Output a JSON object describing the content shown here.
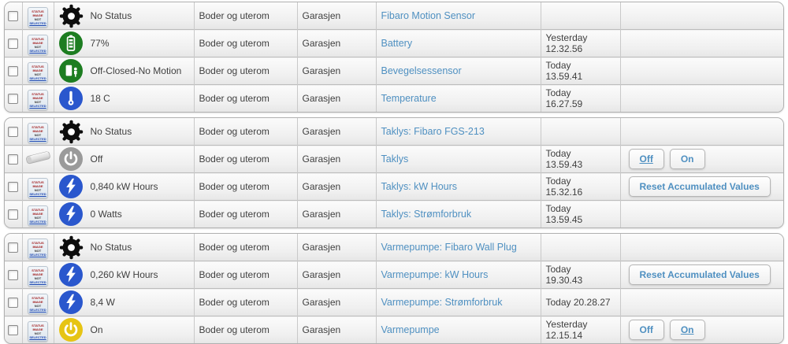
{
  "colors": {
    "link_blue": "#4f90c1",
    "icon_green": "#1d7d21",
    "icon_blue": "#2a57cd",
    "icon_gray": "#9a9a9a",
    "icon_yellow": "#e6c414",
    "icon_black": "#0d0d0d"
  },
  "placeholder_image": {
    "lines": [
      "STATUS",
      "IMAGE",
      "NOT",
      "SELECTED"
    ]
  },
  "groups": [
    {
      "rows": [
        {
          "image": "placeholder",
          "icon": "gear-black",
          "status": "No Status",
          "room": "Boder og uterom",
          "floor": "Garasjen",
          "name": "Fibaro Motion Sensor",
          "when": "",
          "time": "",
          "actions": []
        },
        {
          "image": "placeholder",
          "icon": "battery-green",
          "status": "77%",
          "room": "Boder og uterom",
          "floor": "Garasjen",
          "name": "Battery",
          "when": "Yesterday",
          "time": "12.32.56",
          "actions": []
        },
        {
          "image": "placeholder",
          "icon": "motion-green",
          "status": "Off-Closed-No Motion",
          "room": "Boder og uterom",
          "floor": "Garasjen",
          "name": "Bevegelsessensor",
          "when": "Today",
          "time": "13.59.41",
          "actions": []
        },
        {
          "image": "placeholder",
          "icon": "thermometer-blue",
          "status": "18 C",
          "room": "Boder og uterom",
          "floor": "Garasjen",
          "name": "Temperature",
          "when": "Today",
          "time": "16.27.59",
          "actions": []
        }
      ]
    },
    {
      "rows": [
        {
          "image": "placeholder",
          "icon": "gear-black",
          "status": "No Status",
          "room": "Boder og uterom",
          "floor": "Garasjen",
          "name": "Taklys: Fibaro FGS-213",
          "when": "",
          "time": "",
          "actions": []
        },
        {
          "image": "lamp-photo",
          "icon": "power-gray",
          "status": "Off",
          "room": "Boder og uterom",
          "floor": "Garasjen",
          "name": "Taklys",
          "when": "Today",
          "time": "13.59.43",
          "actions": [
            {
              "label": "Off",
              "active": true
            },
            {
              "label": "On",
              "active": false
            }
          ]
        },
        {
          "image": "placeholder",
          "icon": "bolt-blue",
          "status": "0,840 kW Hours",
          "room": "Boder og uterom",
          "floor": "Garasjen",
          "name": "Taklys: kW Hours",
          "when": "Today",
          "time": "15.32.16",
          "actions": [
            {
              "label": "Reset Accumulated Values",
              "active": false
            }
          ]
        },
        {
          "image": "placeholder",
          "icon": "bolt-blue",
          "status": "0 Watts",
          "room": "Boder og uterom",
          "floor": "Garasjen",
          "name": "Taklys: Strømforbruk",
          "when": "Today",
          "time": "13.59.45",
          "actions": []
        }
      ]
    },
    {
      "rows": [
        {
          "image": "placeholder",
          "icon": "gear-black",
          "status": "No Status",
          "room": "Boder og uterom",
          "floor": "Garasjen",
          "name": "Varmepumpe: Fibaro Wall Plug",
          "when": "",
          "time": "",
          "actions": []
        },
        {
          "image": "placeholder",
          "icon": "bolt-blue",
          "status": "0,260 kW Hours",
          "room": "Boder og uterom",
          "floor": "Garasjen",
          "name": "Varmepumpe: kW Hours",
          "when": "Today",
          "time": "19.30.43",
          "actions": [
            {
              "label": "Reset Accumulated Values",
              "active": false
            }
          ]
        },
        {
          "image": "placeholder",
          "icon": "bolt-blue",
          "status": "8,4 W",
          "room": "Boder og uterom",
          "floor": "Garasjen",
          "name": "Varmepumpe: Strømforbruk",
          "when": "Today 20.28.27",
          "time": "",
          "actions": []
        },
        {
          "image": "placeholder",
          "icon": "power-yellow",
          "status": "On",
          "room": "Boder og uterom",
          "floor": "Garasjen",
          "name": "Varmepumpe",
          "when": "Yesterday",
          "time": "12.15.14",
          "actions": [
            {
              "label": "Off",
              "active": false
            },
            {
              "label": "On",
              "active": true
            }
          ]
        }
      ]
    }
  ]
}
